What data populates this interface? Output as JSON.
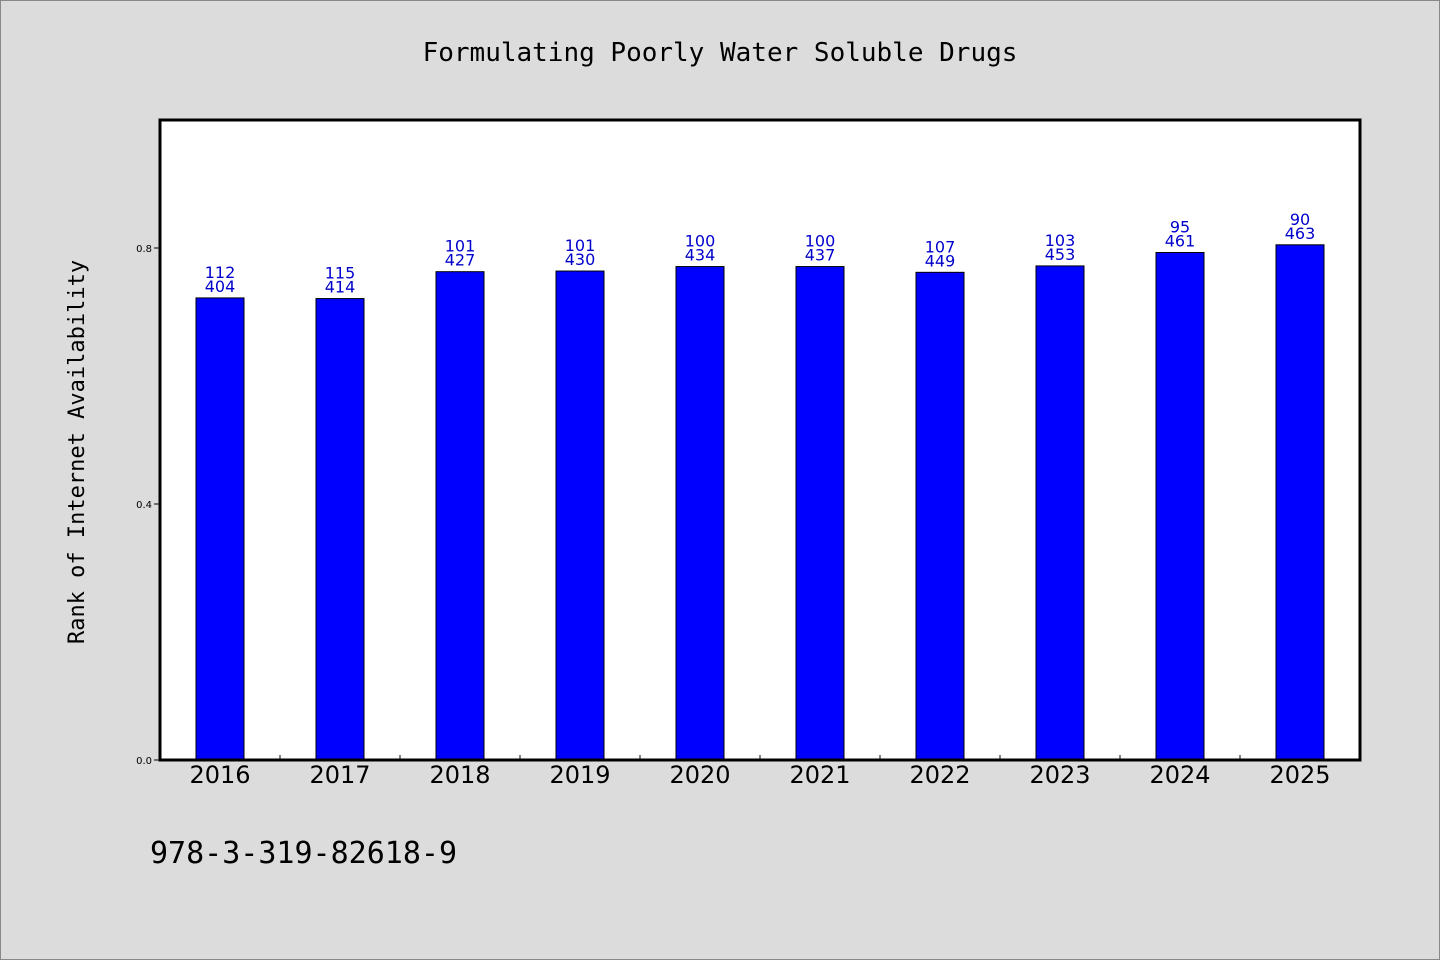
{
  "chart_data": {
    "type": "bar",
    "title": "Formulating Poorly Water Soluble Drugs",
    "xlabel": "",
    "ylabel": "Rank of Internet Availability",
    "ylim": [
      0,
      1.0
    ],
    "yticks": [
      "0.0",
      "0.4",
      "0.8"
    ],
    "grid": false,
    "categories": [
      "2016",
      "2017",
      "2018",
      "2019",
      "2020",
      "2021",
      "2022",
      "2023",
      "2024",
      "2025"
    ],
    "values": [
      0.722,
      0.721,
      0.763,
      0.764,
      0.771,
      0.771,
      0.762,
      0.772,
      0.793,
      0.805
    ],
    "labels_top": [
      "112",
      "115",
      "101",
      "101",
      "100",
      "100",
      "107",
      "103",
      "95",
      "90"
    ],
    "labels_bottom": [
      "404",
      "414",
      "427",
      "430",
      "434",
      "437",
      "449",
      "453",
      "461",
      "463"
    ],
    "bar_color": "#0000ff",
    "label_color": "#0000cc",
    "background": "#dcdcdc",
    "plot_background": "#ffffff"
  },
  "footer": {
    "isbn": "978-3-319-82618-9"
  }
}
